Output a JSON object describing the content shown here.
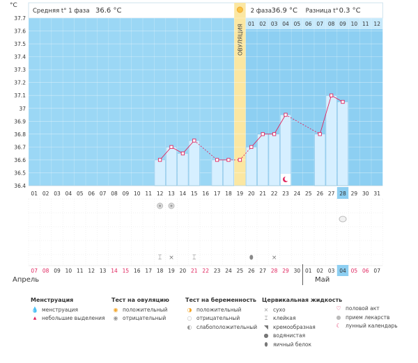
{
  "header": {
    "phase1_label": "Средняя t° 1 фаза",
    "phase1_value": "36.6 °C",
    "phase2_label": "2 фаза",
    "phase2_value": "36.9 °C",
    "diff_label": "Разница t°",
    "diff_value": "0.3 °C",
    "unit": "°C",
    "ovulation_label": "ОВУЛЯЦИЯ"
  },
  "chart_data": {
    "type": "line",
    "title": "",
    "ylabel": "°C",
    "ylim": [
      36.4,
      37.7
    ],
    "yticks": [
      "36.4",
      "36.5",
      "36.6",
      "36.7",
      "36.8",
      "36.9",
      "37",
      "37.1",
      "37.2",
      "37.3",
      "37.4",
      "37.5",
      "37.6",
      "37.7"
    ],
    "x": [
      "01",
      "02",
      "03",
      "04",
      "05",
      "06",
      "07",
      "08",
      "09",
      "10",
      "11",
      "12",
      "13",
      "14",
      "15",
      "16",
      "17",
      "18",
      "19",
      "20",
      "21",
      "22",
      "23",
      "24",
      "25",
      "26",
      "27",
      "28",
      "29",
      "30",
      "31"
    ],
    "values": [
      null,
      null,
      null,
      null,
      null,
      null,
      null,
      null,
      null,
      null,
      null,
      36.6,
      36.7,
      36.65,
      36.75,
      null,
      36.6,
      36.6,
      36.6,
      36.7,
      36.8,
      36.8,
      36.95,
      null,
      null,
      36.8,
      37.1,
      37.05,
      null,
      null,
      null
    ],
    "ovulation_day": "19",
    "phase2_day_labels": [
      "01",
      "02",
      "03",
      "04",
      "05",
      "06",
      "07",
      "08",
      "09",
      "10",
      "11",
      "12"
    ],
    "highlight_day": "28"
  },
  "calendar": {
    "dates": [
      {
        "d": "07",
        "red": true
      },
      {
        "d": "08",
        "red": true
      },
      {
        "d": "09",
        "red": false
      },
      {
        "d": "10",
        "red": false
      },
      {
        "d": "11",
        "red": false
      },
      {
        "d": "12",
        "red": false
      },
      {
        "d": "13",
        "red": false
      },
      {
        "d": "14",
        "red": true
      },
      {
        "d": "15",
        "red": true
      },
      {
        "d": "16",
        "red": false
      },
      {
        "d": "17",
        "red": false
      },
      {
        "d": "18",
        "red": false
      },
      {
        "d": "19",
        "red": false
      },
      {
        "d": "20",
        "red": false
      },
      {
        "d": "21",
        "red": true
      },
      {
        "d": "22",
        "red": true
      },
      {
        "d": "23",
        "red": false
      },
      {
        "d": "24",
        "red": false
      },
      {
        "d": "25",
        "red": false
      },
      {
        "d": "26",
        "red": false
      },
      {
        "d": "27",
        "red": false
      },
      {
        "d": "28",
        "red": true
      },
      {
        "d": "29",
        "red": true
      },
      {
        "d": "30",
        "red": false
      },
      {
        "d": "01",
        "red": false
      },
      {
        "d": "02",
        "red": false
      },
      {
        "d": "03",
        "red": false
      },
      {
        "d": "04",
        "red": false
      },
      {
        "d": "05",
        "red": true
      },
      {
        "d": "06",
        "red": true
      },
      {
        "d": "07",
        "red": false
      }
    ],
    "month_april": "Апрель",
    "month_may": "Май"
  },
  "legend": {
    "menstruation": {
      "title": "Менструация",
      "items": [
        "менструация",
        "небольшие выделения"
      ]
    },
    "ovulation_test": {
      "title": "Тест на овуляцию",
      "items": [
        "положительный",
        "отрицательный"
      ]
    },
    "pregnancy_test": {
      "title": "Тест на беременность",
      "items": [
        "положительный",
        "отрицательный",
        "слабоположительный"
      ]
    },
    "cervical": {
      "title": "Цервикальная жидкость",
      "items": [
        "сухо",
        "клейкая",
        "кремообразная",
        "водянистая",
        "яичный белок"
      ]
    },
    "other": {
      "items": [
        "половой акт",
        "прием лекарств",
        "лунный календарь"
      ]
    }
  },
  "colors": {
    "phase1_bg": "#9bd7f5",
    "phase2_bg": "#8dcff2",
    "ovulation": "#fbe7a2",
    "bar": "#d6efff",
    "bar_border": "#8cc6e8",
    "line": "#e0245e",
    "red_text": "#e0245e"
  }
}
